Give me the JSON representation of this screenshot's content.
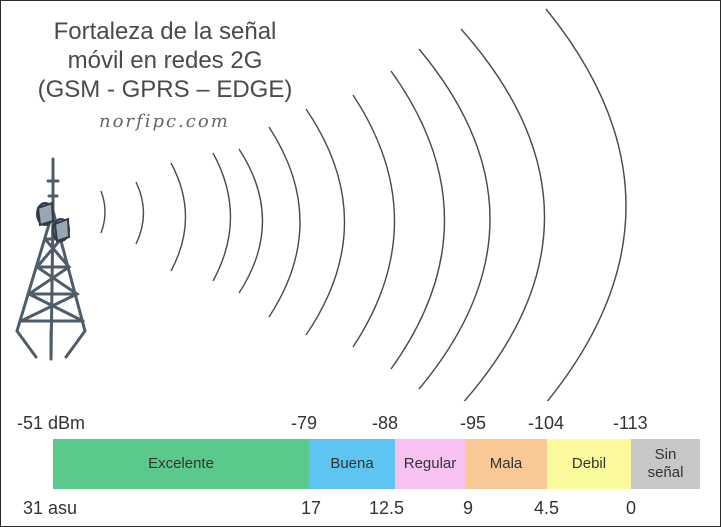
{
  "title_lines": [
    "Fortaleza de la señal",
    "móvil en redes 2G",
    "(GSM - GPRS – EDGE)"
  ],
  "watermark": "norfipc.com",
  "top_labels": [
    "-51 dBm",
    "-79",
    "-88",
    "-95",
    "-104",
    "-113"
  ],
  "segments": [
    {
      "label": "Excelente",
      "color": "#5bc98b"
    },
    {
      "label": "Buena",
      "color": "#5ec4f1"
    },
    {
      "label": "Regular",
      "color": "#f7c2f2"
    },
    {
      "label": "Mala",
      "color": "#f8c996"
    },
    {
      "label": "Debil",
      "color": "#fbfb9d"
    },
    {
      "label": "Sin\nseñal",
      "color": "#c7c7c7"
    }
  ],
  "bottom_labels": [
    "31 asu",
    "17",
    "12.5",
    "9",
    "4.5",
    "0"
  ],
  "icons": {
    "tower": "cell-tower-icon"
  },
  "colors": {
    "wave": "#4a4a4a",
    "tower": "#4f5d6a"
  }
}
